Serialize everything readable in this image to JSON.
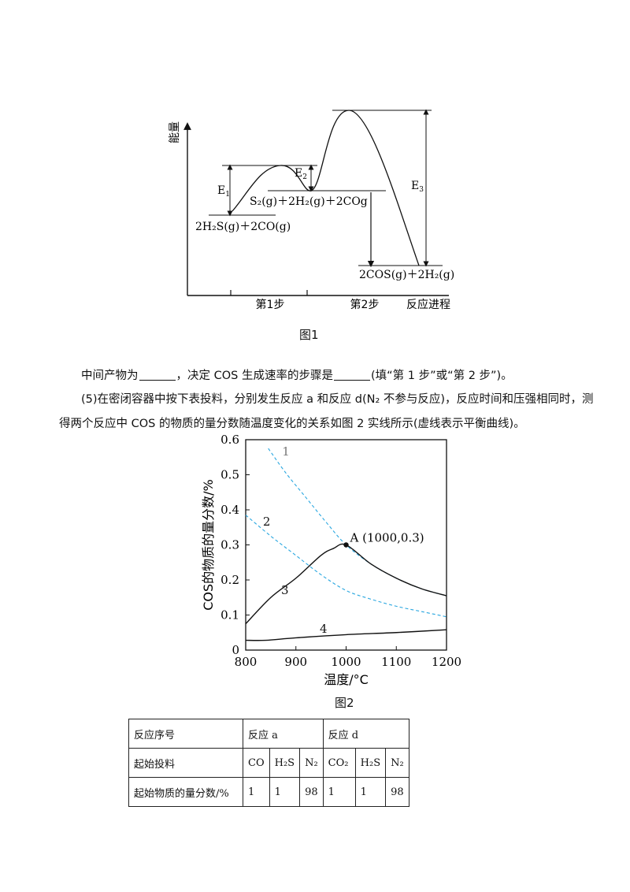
{
  "figure1": {
    "y_axis_label": "能量",
    "x_axis_label": "反应进程",
    "step1_label": "第1步",
    "step2_label": "第2步",
    "e1": "E",
    "e1_sub": "1",
    "e2": "E",
    "e2_sub": "2",
    "e3": "E",
    "e3_sub": "3",
    "reactants": "2H₂S(g)＋2CO(g)",
    "intermediate": "S₂(g)＋2H₂(g)＋2COg",
    "products": "2COS(g)＋2H₂(g)",
    "caption": "图1"
  },
  "text": {
    "line1_a": "中间产物为",
    "line1_b": "，决定 COS 生成速率的步骤是",
    "line1_c": "(填“第 1 步”或“第 2 步”)。",
    "line2": "(5)在密闭容器中按下表投料，分别发生反应 a 和反应 d(N₂ 不参与反应)，反应时间和压强相同时，测",
    "line3": "得两个反应中 COS 的物质的量分数随温度变化的关系如图 2 实线所示(虚线表示平衡曲线)。"
  },
  "chart_data": {
    "type": "line",
    "xlabel": "温度/°C",
    "ylabel": "COS的物质的量分数/%",
    "xlim": [
      800,
      1200
    ],
    "ylim": [
      0,
      0.6
    ],
    "xticks": [
      "800",
      "900",
      "1000",
      "1100",
      "1200"
    ],
    "yticks": [
      "0",
      "0.1",
      "0.2",
      "0.3",
      "0.4",
      "0.5",
      "0.6"
    ],
    "grid": false,
    "annotation": "A (1000,0.3)",
    "annotation_point": [
      1000,
      0.3
    ],
    "series": [
      {
        "name": "1",
        "style": "dashed",
        "color": "#2aa7e0",
        "x": [
          845,
          880,
          920,
          960,
          1000,
          1050,
          1100,
          1150,
          1200
        ],
        "y": [
          0.575,
          0.505,
          0.435,
          0.365,
          0.3,
          0.245,
          0.205,
          0.175,
          0.155
        ]
      },
      {
        "name": "2",
        "style": "dashed",
        "color": "#2aa7e0",
        "x": [
          800,
          850,
          900,
          950,
          1000,
          1050,
          1100,
          1150,
          1200
        ],
        "y": [
          0.385,
          0.325,
          0.27,
          0.215,
          0.17,
          0.145,
          0.125,
          0.11,
          0.095
        ]
      },
      {
        "name": "3",
        "style": "solid",
        "color": "#111111",
        "x": [
          800,
          850,
          900,
          950,
          975,
          1000,
          1050,
          1100,
          1150,
          1200
        ],
        "y": [
          0.075,
          0.15,
          0.205,
          0.27,
          0.29,
          0.3,
          0.245,
          0.205,
          0.175,
          0.155
        ]
      },
      {
        "name": "4",
        "style": "solid",
        "color": "#111111",
        "x": [
          800,
          840,
          900,
          1000,
          1100,
          1200
        ],
        "y": [
          0.028,
          0.028,
          0.035,
          0.044,
          0.05,
          0.058
        ]
      }
    ],
    "caption": "图2"
  },
  "table": {
    "row1": {
      "label": "反应序号",
      "a": "反应 a",
      "d": "反应 d"
    },
    "row2": {
      "label": "起始投料",
      "cells": [
        "CO",
        "H₂S",
        "N₂",
        "CO₂",
        "H₂S",
        "N₂"
      ]
    },
    "row3": {
      "label": "起始物质的量分数/%",
      "cells": [
        "1",
        "1",
        "98",
        "1",
        "1",
        "98"
      ]
    }
  }
}
